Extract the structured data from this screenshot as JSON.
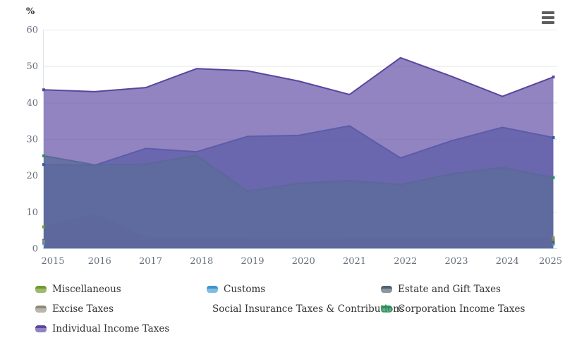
{
  "chart": {
    "y_axis_title": "%",
    "menu_icon": "hamburger-icon",
    "background": "#ffffff",
    "gridline_color": "#e6e6e6",
    "axis_line_color": "#ccd6eb",
    "axis_label_color": "#66707d",
    "legend_text_color": "#333333"
  },
  "chart_data": {
    "type": "area",
    "overlapping": true,
    "title": "",
    "xlabel": "",
    "ylabel": "%",
    "ylim": [
      0,
      60
    ],
    "y_ticks": [
      0,
      10,
      20,
      30,
      40,
      50,
      60
    ],
    "grid": "horizontal",
    "legend_position": "bottom",
    "fill_opacity": 0.75,
    "x": [
      2015,
      2016,
      2017,
      2018,
      2019,
      2020,
      2021,
      2022,
      2023,
      2024,
      2025
    ],
    "series": [
      {
        "name": "Miscellaneous",
        "line": "#6e9b2d",
        "fill": "#7ca33c",
        "values": [
          5.9,
          9.4,
          3.0,
          2.4,
          2.2,
          2.1,
          2.2,
          2.3,
          2.2,
          2.3,
          2.3
        ]
      },
      {
        "name": "Customs",
        "line": "#3d95cc",
        "fill": "#57a7d9",
        "values": [
          1.4,
          1.4,
          1.3,
          1.3,
          1.3,
          1.2,
          1.3,
          1.3,
          1.3,
          1.3,
          1.2
        ]
      },
      {
        "name": "Estate and Gift Taxes",
        "line": "#53616e",
        "fill": "#64737f",
        "values": [
          2.2,
          2.1,
          2.0,
          2.0,
          2.0,
          1.9,
          2.0,
          2.1,
          2.0,
          2.0,
          1.7
        ]
      },
      {
        "name": "Excise Taxes",
        "line": "#8f8778",
        "fill": "#a39e92",
        "values": [
          2.0,
          2.5,
          2.8,
          2.9,
          2.8,
          2.7,
          2.8,
          2.9,
          2.8,
          2.9,
          2.9
        ]
      },
      {
        "name": "Social Insurance Taxes & Contributions",
        "line": "#2d5f9e",
        "fill": "#31639c",
        "values": [
          23.0,
          22.8,
          27.4,
          26.5,
          30.7,
          31.0,
          33.6,
          24.8,
          29.5,
          33.2,
          30.4
        ]
      },
      {
        "name": "Corporation Income Taxes",
        "line": "#27925c",
        "fill": "#2e9962",
        "values": [
          25.4,
          22.9,
          23.1,
          25.5,
          15.7,
          17.8,
          18.6,
          17.5,
          20.4,
          22.2,
          19.4
        ]
      },
      {
        "name": "Individual Income Taxes",
        "line": "#5b459c",
        "fill": "#6c5bac",
        "values": [
          43.5,
          43.0,
          44.1,
          49.3,
          48.7,
          45.9,
          42.2,
          52.3,
          47.2,
          41.7,
          47.0
        ]
      }
    ]
  }
}
